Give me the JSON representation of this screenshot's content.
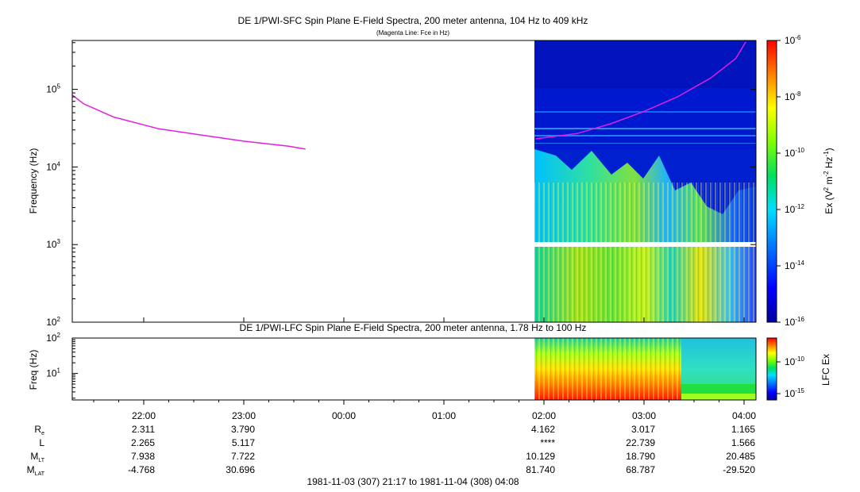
{
  "chart_data": [
    {
      "type": "heatmap",
      "title": "DE 1/PWI-SFC  Spin Plane E-Field Spectra, 200 meter antenna, 104 Hz to 409 kHz",
      "subtitle": "(Magenta Line: Fce in Hz)",
      "ylabel": "Frequency (Hz)",
      "y_scale": "log",
      "ylim": [
        100,
        409000
      ],
      "y_ticks": [
        "10^2",
        "10^3",
        "10^4",
        "10^5"
      ],
      "colorbar": {
        "label": "Ex (V^2 m^-2 Hz^-1)",
        "scale": "log",
        "range": [
          1e-16,
          1e-06
        ],
        "ticks": [
          "10^-6",
          "10^-8",
          "10^-10",
          "10^-12",
          "10^-14",
          "10^-16"
        ]
      },
      "data_coverage_utc": [
        "01:55",
        "04:08"
      ],
      "gap_frequency_hz": [
        880,
        1000
      ],
      "series": [
        {
          "name": "Fce",
          "color": "#e020e0",
          "x": [
            "21:17",
            "21:24",
            "21:42",
            "22:09",
            "22:36",
            "23:00",
            "23:27",
            "23:37"
          ],
          "y": [
            85000,
            65000,
            44000,
            31000,
            25500,
            21500,
            18500,
            17000
          ]
        },
        {
          "name": "Fce",
          "color": "#e020e0",
          "x": [
            "01:55",
            "02:20",
            "02:40",
            "03:00",
            "03:20",
            "03:40",
            "03:55",
            "04:01"
          ],
          "y": [
            23000,
            27000,
            36000,
            52000,
            80000,
            140000,
            250000,
            409000
          ]
        }
      ]
    },
    {
      "type": "heatmap",
      "title": "DE 1/PWI-LFC  Spin Plane E-Field Spectra, 200 meter antenna, 1.78 Hz to 100 Hz",
      "ylabel": "Freq (Hz)",
      "y_scale": "log",
      "ylim": [
        1.78,
        100
      ],
      "y_ticks": [
        "10^1",
        "10^2"
      ],
      "colorbar": {
        "label": "LFC Ex",
        "scale": "log",
        "ticks": [
          "10^-10",
          "10^-15"
        ]
      },
      "data_coverage_utc": [
        "01:55",
        "04:08"
      ]
    }
  ],
  "x_axis": {
    "ticks": [
      "22:00",
      "23:00",
      "00:00",
      "01:00",
      "02:00",
      "03:00",
      "04:00"
    ]
  },
  "ephemeris": {
    "rows": [
      {
        "label": "R",
        "sub": "e",
        "values": [
          "2.311",
          "3.790",
          "",
          "",
          "4.162",
          "3.017",
          "1.165"
        ]
      },
      {
        "label": "L",
        "sub": "",
        "values": [
          "2.265",
          "5.117",
          "",
          "",
          "****",
          "22.739",
          "1.566"
        ]
      },
      {
        "label": "M",
        "sub": "LT",
        "values": [
          "7.938",
          "7.722",
          "",
          "",
          "10.129",
          "18.790",
          "20.485"
        ]
      },
      {
        "label": "M",
        "sub": "LAT",
        "values": [
          "-4.768",
          "30.696",
          "",
          "",
          "81.740",
          "68.787",
          "-29.520"
        ]
      }
    ]
  },
  "time_range": "1981-11-03 (307) 21:17 to 1981-11-04 (308) 04:08"
}
